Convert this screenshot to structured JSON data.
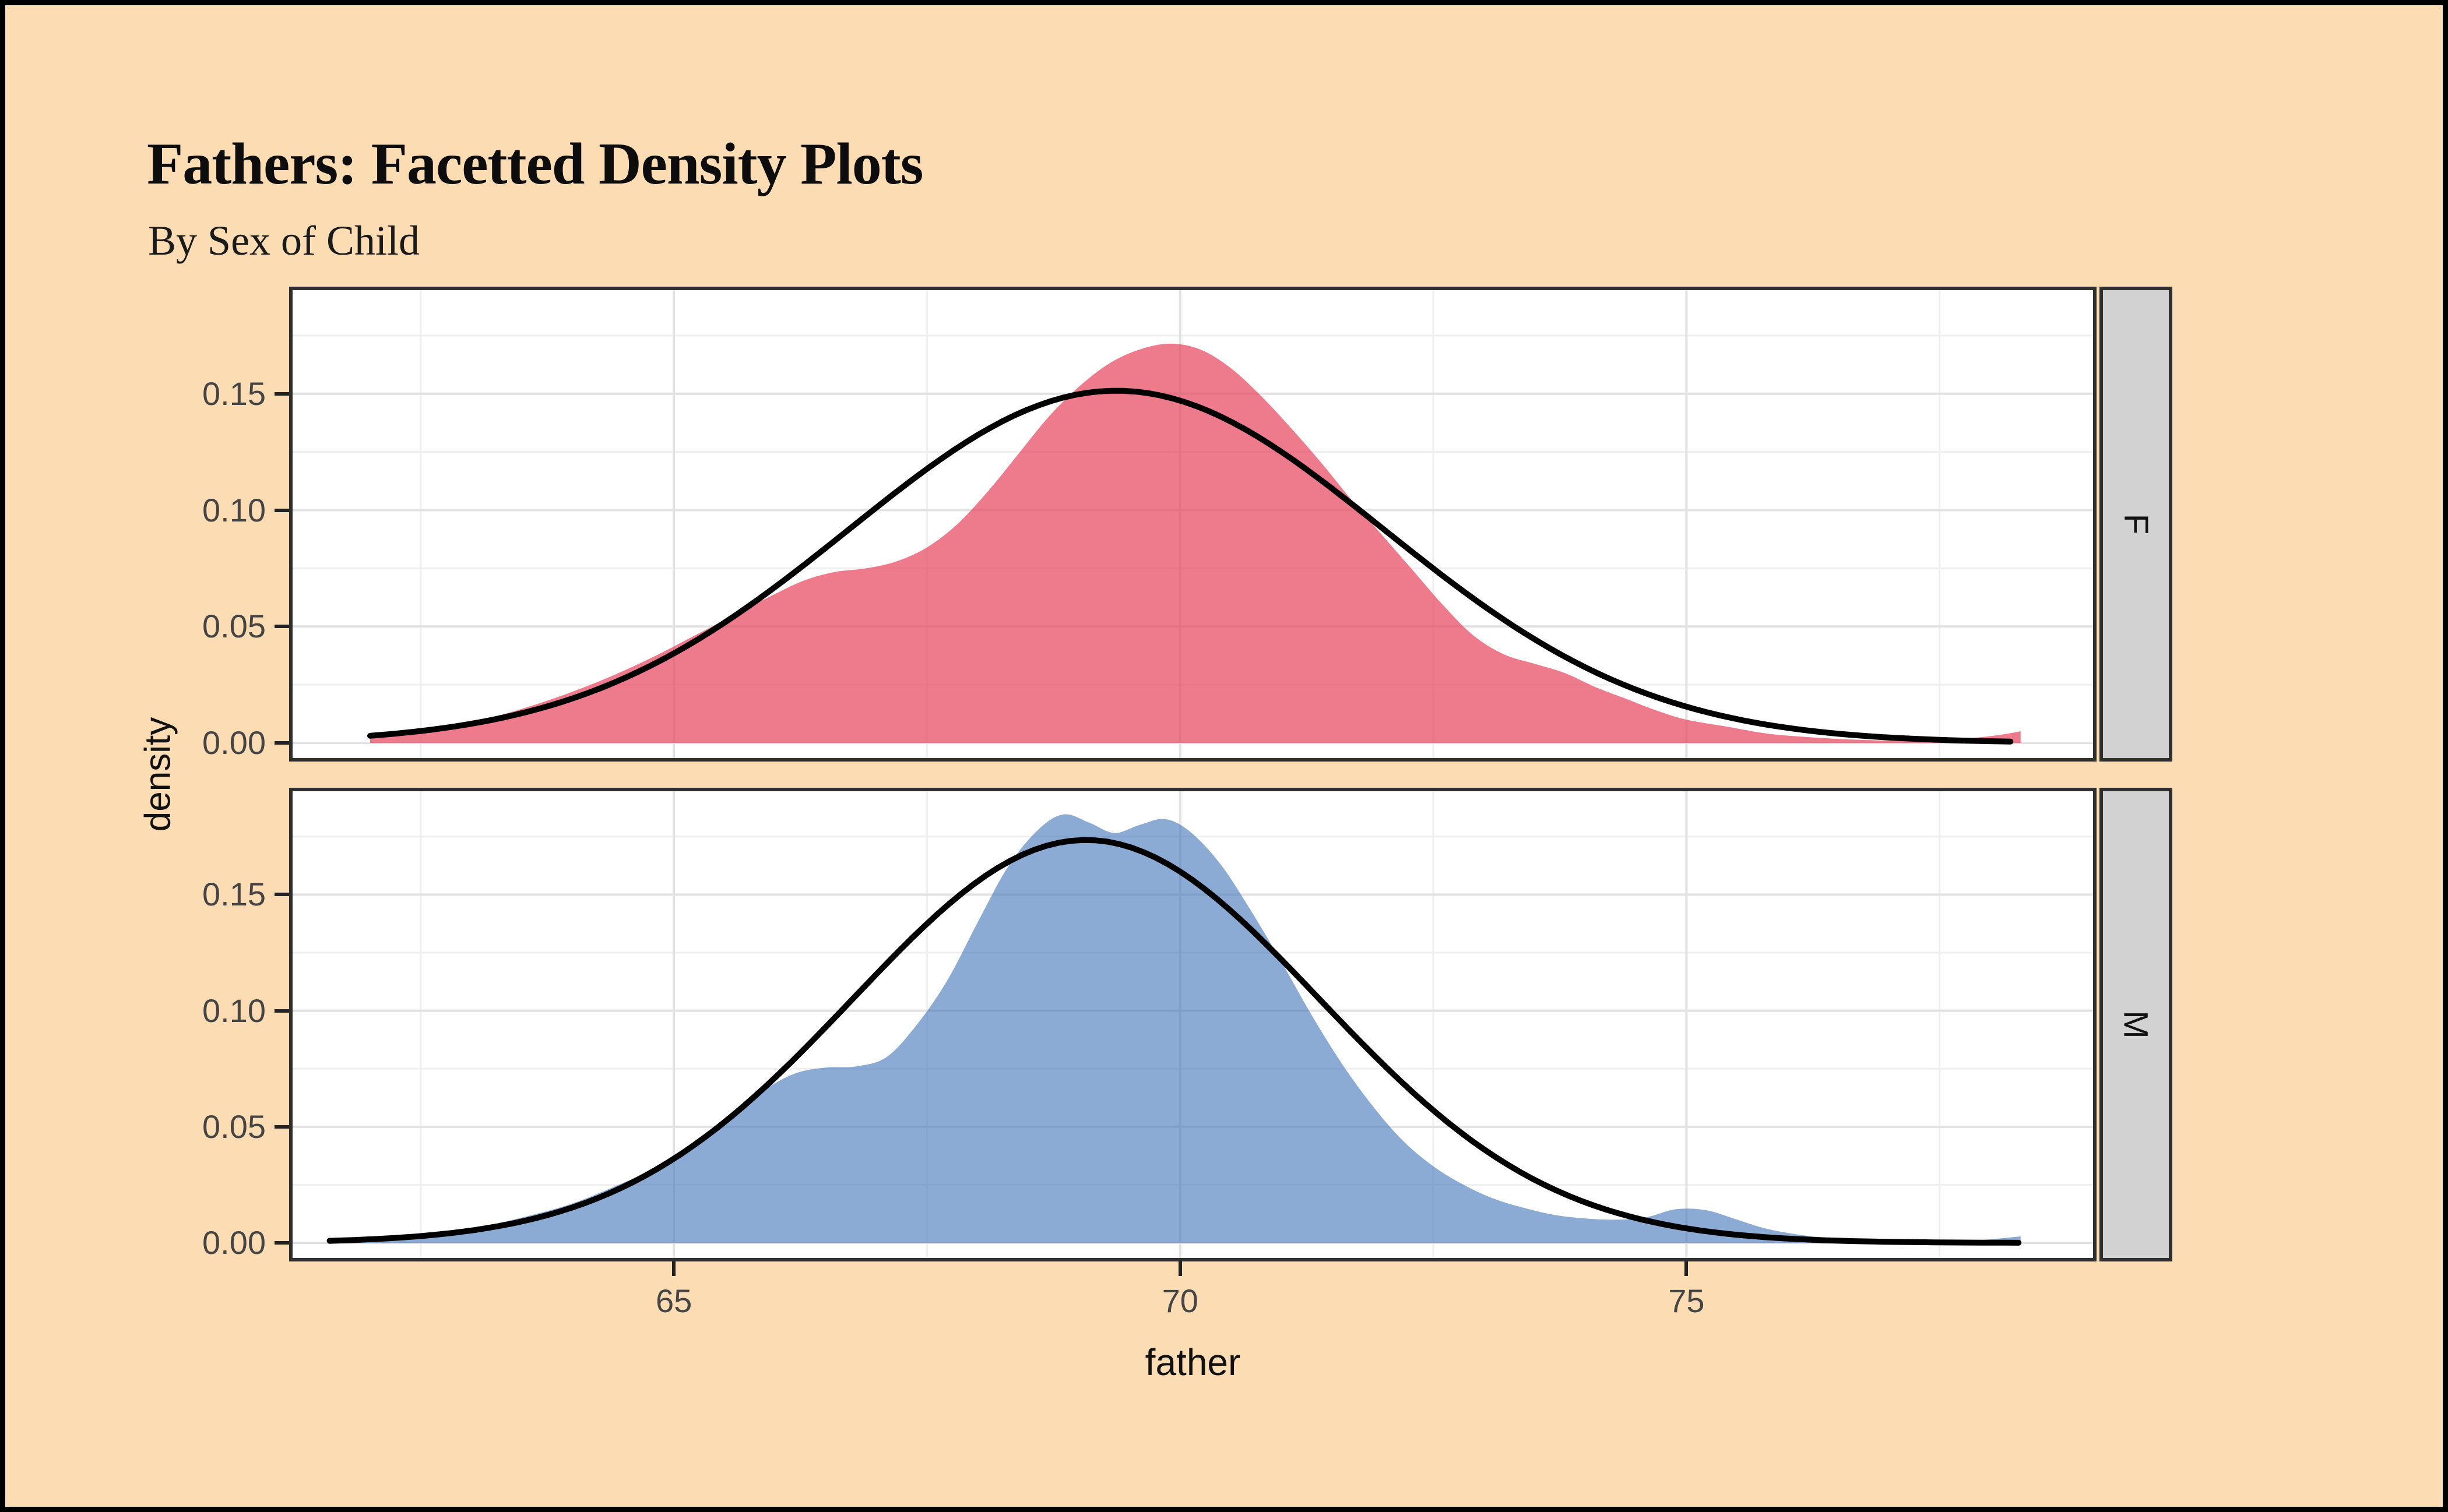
{
  "chart_data": {
    "type": "area",
    "title": "Fathers: Facetted Density Plots",
    "subtitle": "By Sex of Child",
    "xlabel": "father",
    "ylabel": "density",
    "legend_position": "none",
    "grid": true,
    "axes": {
      "xlim": [
        61.2,
        79.05
      ],
      "ylim": [
        -0.008,
        0.196
      ],
      "x_ticks": [
        {
          "v": 65,
          "label": "65"
        },
        {
          "v": 70,
          "label": "70"
        },
        {
          "v": 75,
          "label": "75"
        }
      ],
      "x_minor": [
        62.5,
        67.5,
        72.5,
        77.5
      ],
      "y_ticks": [
        {
          "v": 0.0,
          "label": "0.00"
        },
        {
          "v": 0.05,
          "label": "0.05"
        },
        {
          "v": 0.1,
          "label": "0.10"
        },
        {
          "v": 0.15,
          "label": "0.15"
        }
      ],
      "y_minor": [
        0.025,
        0.075,
        0.125,
        0.175
      ]
    },
    "facets": [
      {
        "label": "F",
        "fill": "rgba(230,72,94,0.72)",
        "fill_observed": "#EC7D89",
        "density": [
          [
            62.0,
            0.0035
          ],
          [
            62.4,
            0.005
          ],
          [
            62.8,
            0.0075
          ],
          [
            63.2,
            0.011
          ],
          [
            63.6,
            0.016
          ],
          [
            64.0,
            0.022
          ],
          [
            64.4,
            0.029
          ],
          [
            64.8,
            0.037
          ],
          [
            65.2,
            0.046
          ],
          [
            65.6,
            0.055
          ],
          [
            66.0,
            0.064
          ],
          [
            66.3,
            0.07
          ],
          [
            66.6,
            0.0735
          ],
          [
            66.9,
            0.075
          ],
          [
            67.2,
            0.078
          ],
          [
            67.5,
            0.084
          ],
          [
            67.8,
            0.094
          ],
          [
            68.1,
            0.108
          ],
          [
            68.4,
            0.124
          ],
          [
            68.7,
            0.14
          ],
          [
            69.0,
            0.153
          ],
          [
            69.3,
            0.163
          ],
          [
            69.6,
            0.169
          ],
          [
            69.9,
            0.1715
          ],
          [
            70.2,
            0.169
          ],
          [
            70.5,
            0.161
          ],
          [
            70.8,
            0.149
          ],
          [
            71.1,
            0.135
          ],
          [
            71.4,
            0.12
          ],
          [
            71.7,
            0.104
          ],
          [
            72.0,
            0.089
          ],
          [
            72.3,
            0.074
          ],
          [
            72.6,
            0.059
          ],
          [
            72.9,
            0.046
          ],
          [
            73.2,
            0.038
          ],
          [
            73.5,
            0.034
          ],
          [
            73.8,
            0.03
          ],
          [
            74.1,
            0.024
          ],
          [
            74.4,
            0.019
          ],
          [
            74.7,
            0.014
          ],
          [
            75.0,
            0.01
          ],
          [
            75.4,
            0.007
          ],
          [
            75.8,
            0.004
          ],
          [
            76.2,
            0.0025
          ],
          [
            76.6,
            0.0015
          ],
          [
            77.0,
            0.001
          ],
          [
            77.4,
            0.001
          ],
          [
            77.8,
            0.002
          ],
          [
            78.1,
            0.0035
          ],
          [
            78.3,
            0.005
          ]
        ],
        "normal": {
          "mean": 69.37,
          "sd": 2.64,
          "peak": 0.1513,
          "x0": 62.0,
          "x1": 78.3
        }
      },
      {
        "label": "M",
        "fill": "rgba(70,119,186,0.62)",
        "fill_observed": "#8FAFD3",
        "density": [
          [
            61.6,
            0.001
          ],
          [
            62.1,
            0.002
          ],
          [
            62.6,
            0.004
          ],
          [
            63.1,
            0.007
          ],
          [
            63.6,
            0.012
          ],
          [
            64.0,
            0.017
          ],
          [
            64.4,
            0.024
          ],
          [
            64.8,
            0.032
          ],
          [
            65.2,
            0.043
          ],
          [
            65.6,
            0.055
          ],
          [
            65.9,
            0.066
          ],
          [
            66.2,
            0.073
          ],
          [
            66.5,
            0.0755
          ],
          [
            66.8,
            0.076
          ],
          [
            67.1,
            0.08
          ],
          [
            67.4,
            0.094
          ],
          [
            67.7,
            0.113
          ],
          [
            68.0,
            0.138
          ],
          [
            68.3,
            0.162
          ],
          [
            68.6,
            0.178
          ],
          [
            68.85,
            0.1845
          ],
          [
            69.1,
            0.181
          ],
          [
            69.35,
            0.1765
          ],
          [
            69.6,
            0.18
          ],
          [
            69.85,
            0.1825
          ],
          [
            70.1,
            0.177
          ],
          [
            70.4,
            0.163
          ],
          [
            70.7,
            0.143
          ],
          [
            71.0,
            0.121
          ],
          [
            71.3,
            0.098
          ],
          [
            71.6,
            0.077
          ],
          [
            71.9,
            0.059
          ],
          [
            72.2,
            0.044
          ],
          [
            72.5,
            0.033
          ],
          [
            72.8,
            0.025
          ],
          [
            73.1,
            0.019
          ],
          [
            73.4,
            0.015
          ],
          [
            73.7,
            0.012
          ],
          [
            74.0,
            0.0105
          ],
          [
            74.3,
            0.01
          ],
          [
            74.6,
            0.011
          ],
          [
            74.9,
            0.0145
          ],
          [
            75.2,
            0.014
          ],
          [
            75.5,
            0.01
          ],
          [
            75.8,
            0.006
          ],
          [
            76.2,
            0.003
          ],
          [
            76.6,
            0.0018
          ],
          [
            77.0,
            0.001
          ],
          [
            77.5,
            0.0008
          ],
          [
            77.9,
            0.0012
          ],
          [
            78.3,
            0.0028
          ]
        ],
        "normal": {
          "mean": 69.07,
          "sd": 2.3,
          "peak": 0.1735,
          "x0": 61.6,
          "x1": 78.3
        }
      }
    ],
    "colors": {
      "background": "#FBDCB3",
      "outer_border": "#000000",
      "panel_background": "#FFFFFF",
      "panel_border": "#2F2F2F",
      "grid_major": "#E2E2E2",
      "grid_minor": "#EFEFEF",
      "normal_line": "#000000",
      "strip_background": "#D2D2D2",
      "tick_mark": "#222222",
      "tick_text": "#454545"
    }
  }
}
